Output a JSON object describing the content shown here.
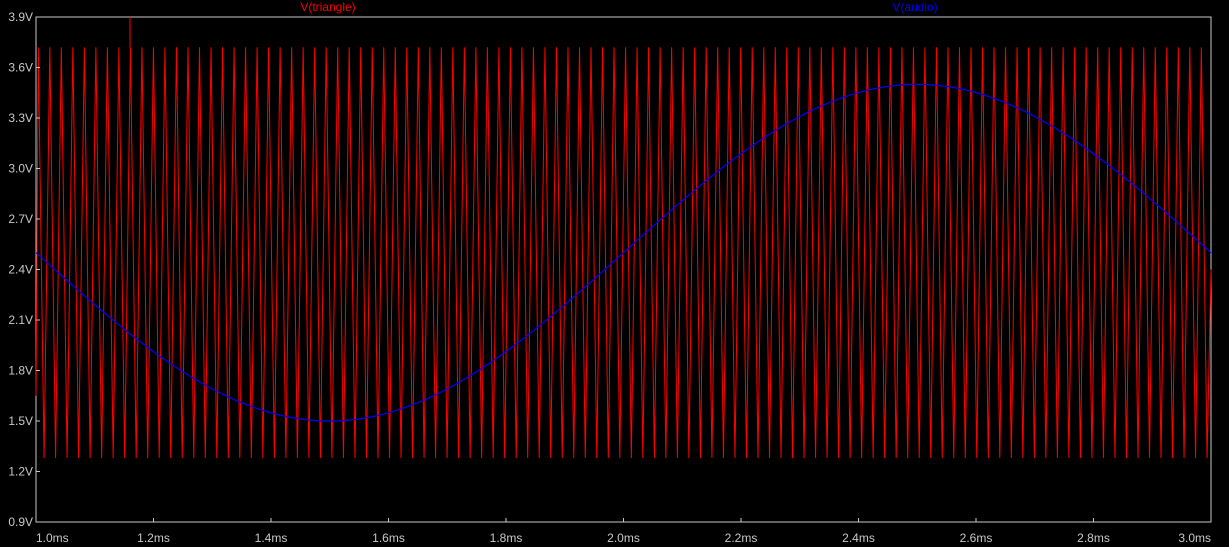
{
  "chart_data": {
    "type": "line",
    "title": "",
    "xlabel": "",
    "ylabel": "",
    "xlim": [
      1.0,
      3.0
    ],
    "ylim": [
      0.9,
      3.9
    ],
    "grid": false,
    "x_ticks": [
      1.0,
      1.2,
      1.4,
      1.6,
      1.8,
      2.0,
      2.2,
      2.4,
      2.6,
      2.8,
      3.0
    ],
    "x_tick_labels": [
      "1.0ms",
      "1.2ms",
      "1.4ms",
      "1.6ms",
      "1.8ms",
      "2.0ms",
      "2.2ms",
      "2.4ms",
      "2.6ms",
      "2.8ms",
      "3.0ms"
    ],
    "y_ticks": [
      0.9,
      1.2,
      1.5,
      1.8,
      2.1,
      2.4,
      2.7,
      3.0,
      3.3,
      3.6,
      3.9
    ],
    "y_tick_labels": [
      "0.9V",
      "1.2V",
      "1.5V",
      "1.8V",
      "2.1V",
      "2.4V",
      "2.7V",
      "3.0V",
      "3.3V",
      "3.6V",
      "3.9V"
    ],
    "colors": {
      "background": "#000000",
      "axis": "#c8c8c8",
      "triangle": "#ff0000",
      "audio": "#0000ff"
    },
    "series": [
      {
        "name": "V(triangle)",
        "color": "#ff0000",
        "waveform": "triangle",
        "min": 1.28,
        "max": 3.72,
        "period": 0.0196,
        "spike": {
          "x": 1.16,
          "y": 3.9
        }
      },
      {
        "name": "V(audio)",
        "color": "#0000ff",
        "waveform": "sine",
        "offset": 2.5,
        "amplitude": 1.0,
        "period": 2.0,
        "x": [
          1.0,
          1.25,
          1.5,
          1.75,
          2.0,
          2.25,
          2.5,
          2.75,
          3.0
        ],
        "y": [
          2.5,
          1.79,
          1.5,
          1.79,
          2.5,
          3.21,
          3.5,
          3.21,
          2.5
        ]
      }
    ]
  }
}
